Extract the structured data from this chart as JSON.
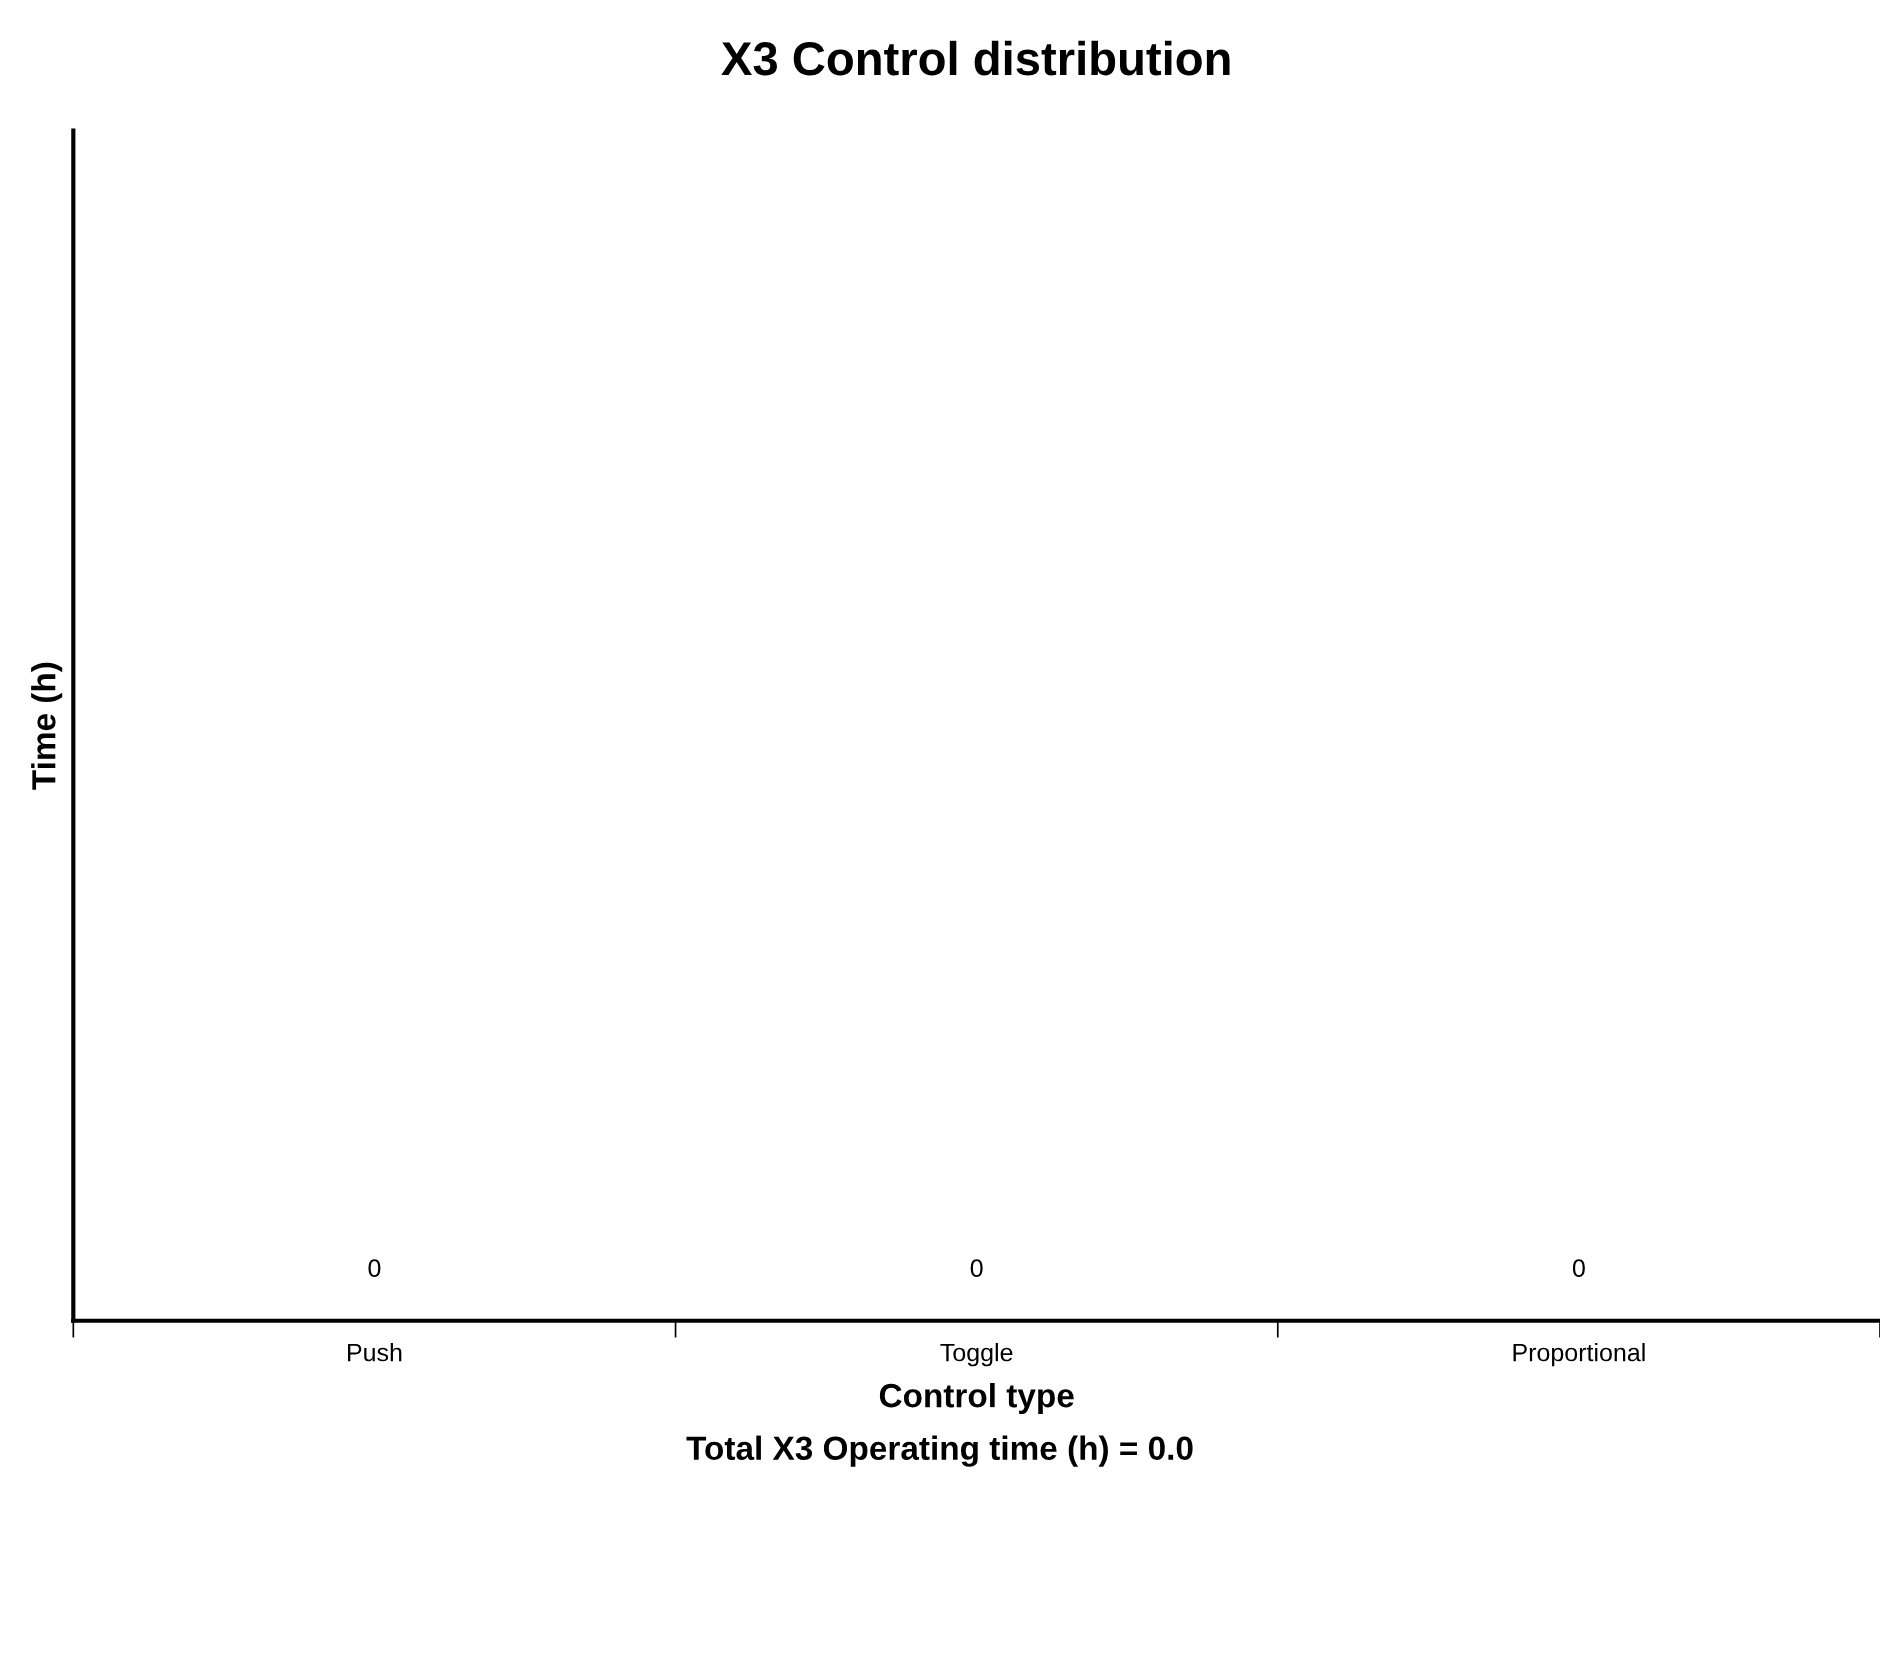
{
  "chart_data": {
    "type": "other",
    "title": "X3 Control distribution",
    "xlabel": "Control type",
    "ylabel": "Time (h)",
    "categories": [
      "Push",
      "Toggle",
      "Proportional"
    ],
    "values": [
      0,
      0,
      0
    ],
    "data_labels": true,
    "annotations": [
      "Total X3 Operating time (h) = 0.0"
    ]
  }
}
